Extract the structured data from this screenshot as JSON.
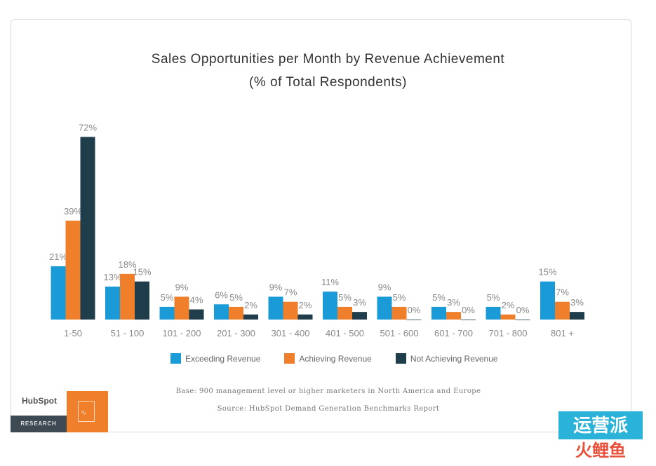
{
  "chart_data": {
    "type": "bar",
    "title": "Sales Opportunities per Month by Revenue Achievement",
    "subtitle": "(% of Total Respondents)",
    "categories": [
      "1-50",
      "51 - 100",
      "101 - 200",
      "201 - 300",
      "301 - 400",
      "401 - 500",
      "501 - 600",
      "601 - 700",
      "701 - 800",
      "801 +"
    ],
    "series": [
      {
        "name": "Exceeding Revenue",
        "color": "#1a9bd7",
        "values": [
          21,
          13,
          5,
          6,
          9,
          11,
          9,
          5,
          5,
          15
        ]
      },
      {
        "name": "Achieving Revenue",
        "color": "#f07f2c",
        "values": [
          39,
          18,
          9,
          5,
          7,
          5,
          5,
          3,
          2,
          7
        ]
      },
      {
        "name": "Not Achieving Revenue",
        "color": "#1f3d4b",
        "values": [
          72,
          15,
          4,
          2,
          2,
          3,
          0,
          0,
          0,
          3
        ]
      }
    ],
    "value_suffix": "%",
    "ylim": [
      0,
      80
    ],
    "grid": false,
    "legend_position": "bottom"
  },
  "footnotes": {
    "base": "Base: 900 management level or higher marketers in North America and Europe",
    "source": "Source: HubSpot Demand Generation Benchmarks Report"
  },
  "branding": {
    "logo_text": "HubSpot",
    "badge_text": "RESEARCH",
    "wave_glyph": "∿",
    "watermark_top": "运营派",
    "watermark_bottom": "火鲤鱼"
  }
}
